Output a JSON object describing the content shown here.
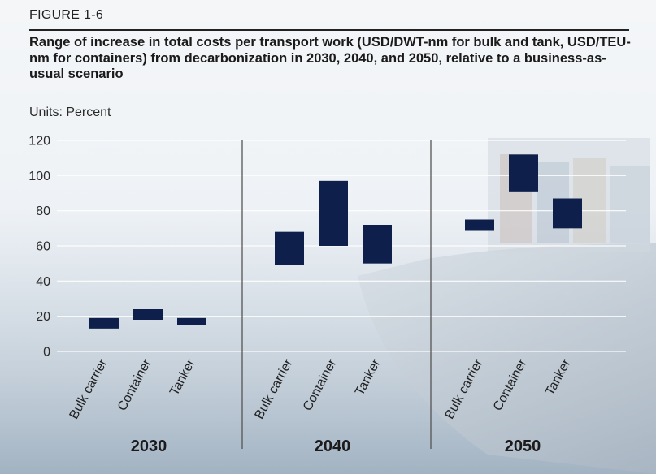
{
  "figure_label": "FIGURE 1-6",
  "title": "Range of increase in total costs per transport work (USD/DWT-nm for bulk and tank, USD/TEU-nm for containers) from decarbonization in 2030, 2040, and 2050, relative to a business-as-usual scenario",
  "units": "Units: Percent",
  "colors": {
    "bar": "#0d1f4a",
    "grid": "#ffffff",
    "divider": "#555555"
  },
  "chart_data": {
    "type": "bar",
    "subtype": "floating-range",
    "ylim": [
      0,
      120
    ],
    "yticks": [
      0,
      20,
      40,
      60,
      80,
      100,
      120
    ],
    "grid": true,
    "groups": [
      {
        "label": "2030",
        "bars": [
          {
            "category": "Bulk carrier",
            "low": 13,
            "high": 19
          },
          {
            "category": "Container",
            "low": 18,
            "high": 24
          },
          {
            "category": "Tanker",
            "low": 15,
            "high": 19
          }
        ]
      },
      {
        "label": "2040",
        "bars": [
          {
            "category": "Bulk carrier",
            "low": 49,
            "high": 68
          },
          {
            "category": "Container",
            "low": 60,
            "high": 97
          },
          {
            "category": "Tanker",
            "low": 50,
            "high": 72
          }
        ]
      },
      {
        "label": "2050",
        "bars": [
          {
            "category": "Bulk carrier",
            "low": 69,
            "high": 75
          },
          {
            "category": "Container",
            "low": 91,
            "high": 112
          },
          {
            "category": "Tanker",
            "low": 70,
            "high": 87
          }
        ]
      }
    ]
  }
}
